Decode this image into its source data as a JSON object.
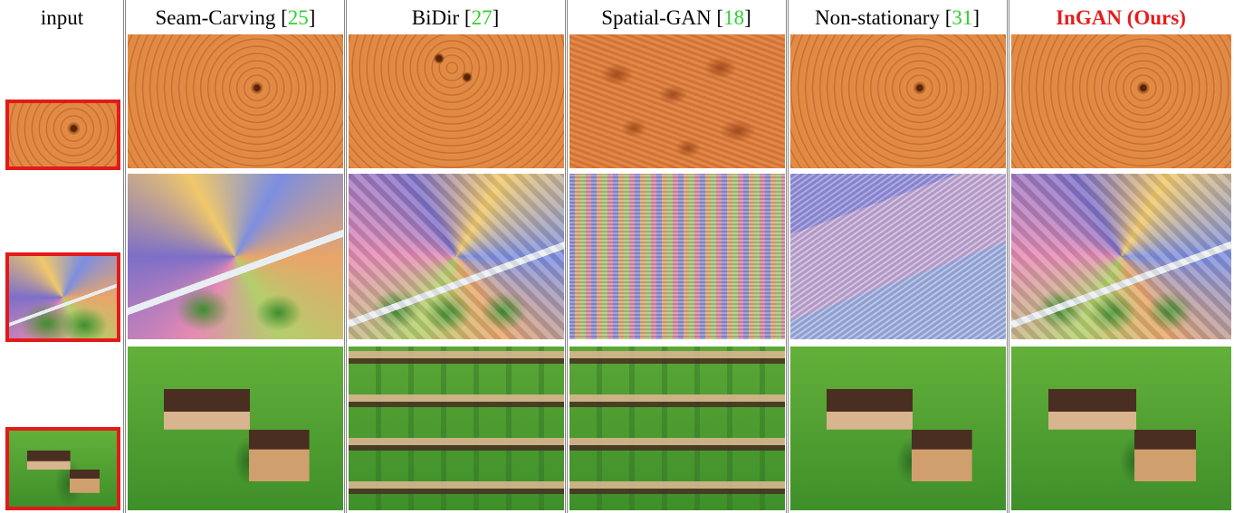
{
  "figure": {
    "columns": [
      {
        "label": "input"
      },
      {
        "label": "Seam-Carving",
        "ref": "25"
      },
      {
        "label": "BiDir",
        "ref": "27"
      },
      {
        "label": "Spatial-GAN",
        "ref": "18"
      },
      {
        "label": "Non-stationary",
        "ref": "31"
      },
      {
        "label": "InGAN (Ours)",
        "highlight": true
      }
    ],
    "rows": [
      "wood",
      "painting",
      "houses"
    ],
    "colors": {
      "highlight": "#e51e1e",
      "citation": "#2fd12f",
      "input_border": "#e31a1a"
    }
  }
}
